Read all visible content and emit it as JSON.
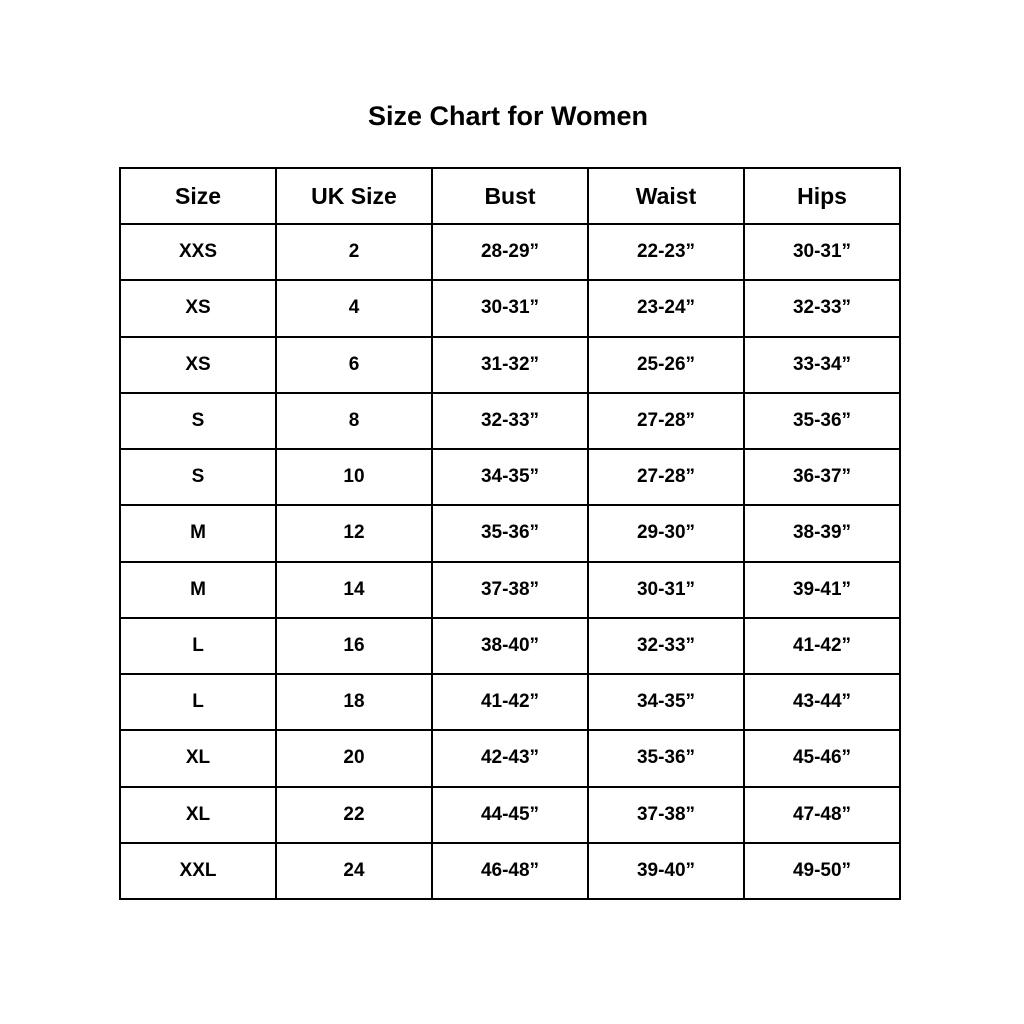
{
  "title": "Size Chart for Women",
  "columns": [
    "Size",
    "UK Size",
    "Bust",
    "Waist",
    "Hips"
  ],
  "rows": [
    [
      "XXS",
      "2",
      "28-29”",
      "22-23”",
      "30-31”"
    ],
    [
      "XS",
      "4",
      "30-31”",
      "23-24”",
      "32-33”"
    ],
    [
      "XS",
      "6",
      "31-32”",
      "25-26”",
      "33-34”"
    ],
    [
      "S",
      "8",
      "32-33”",
      "27-28”",
      "35-36”"
    ],
    [
      "S",
      "10",
      "34-35”",
      "27-28”",
      "36-37”"
    ],
    [
      "M",
      "12",
      "35-36”",
      "29-30”",
      "38-39”"
    ],
    [
      "M",
      "14",
      "37-38”",
      "30-31”",
      "39-41”"
    ],
    [
      "L",
      "16",
      "38-40”",
      "32-33”",
      "41-42”"
    ],
    [
      "L",
      "18",
      "41-42”",
      "34-35”",
      "43-44”"
    ],
    [
      "XL",
      "20",
      "42-43”",
      "35-36”",
      "45-46”"
    ],
    [
      "XL",
      "22",
      "44-45”",
      "37-38”",
      "47-48”"
    ],
    [
      "XXL",
      "24",
      "46-48”",
      "39-40”",
      "49-50”"
    ]
  ]
}
